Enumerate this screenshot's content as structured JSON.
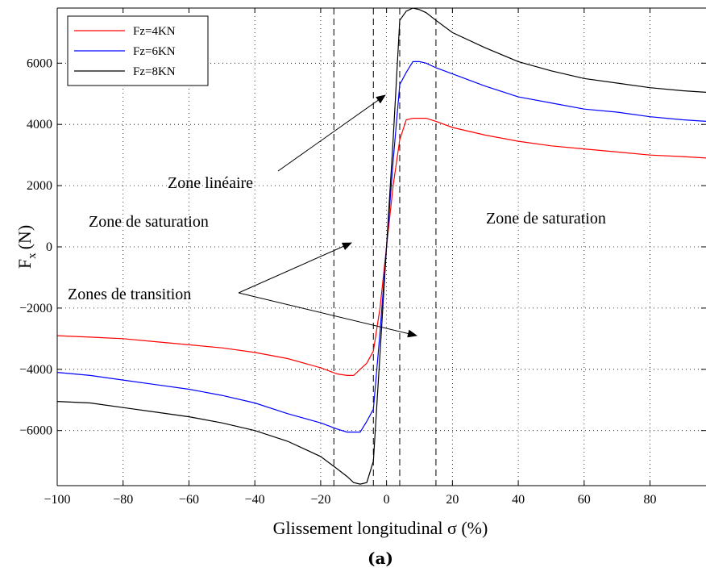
{
  "chart_data": {
    "type": "line",
    "xlabel": "Glissement longitudinal σ (%)",
    "ylabel": "F",
    "ylabel_sub": "x",
    "ylabel_unit": "(N)",
    "caption": "(a)",
    "xlim": [
      -100,
      97
    ],
    "ylim": [
      -7800,
      7800
    ],
    "xticks": [
      -100,
      -80,
      -60,
      -40,
      -20,
      0,
      20,
      40,
      60,
      80
    ],
    "yticks": [
      -6000,
      -4000,
      -2000,
      0,
      2000,
      4000,
      6000
    ],
    "xtick_labels": [
      "−100",
      "−80",
      "−60",
      "−40",
      "−20",
      "0",
      "20",
      "40",
      "60",
      "80"
    ],
    "ytick_labels": [
      "−6000",
      "−4000",
      "−2000",
      "0",
      "2000",
      "4000",
      "6000"
    ],
    "grid": true,
    "legend_position": "top-left",
    "series": [
      {
        "name": "Fz=4KN",
        "color": "#ff0000",
        "x": [
          -100,
          -90,
          -80,
          -70,
          -60,
          -50,
          -40,
          -30,
          -20,
          -15,
          -12,
          -10,
          -8,
          -6,
          -4,
          -2,
          0,
          2,
          4,
          6,
          8,
          10,
          12,
          15,
          20,
          30,
          40,
          50,
          60,
          70,
          80,
          90,
          97
        ],
        "y": [
          -2900,
          -2950,
          -3000,
          -3100,
          -3200,
          -3300,
          -3450,
          -3650,
          -3950,
          -4150,
          -4200,
          -4200,
          -4000,
          -3800,
          -3400,
          -2000,
          0,
          2000,
          3500,
          4150,
          4200,
          4200,
          4200,
          4100,
          3900,
          3650,
          3450,
          3300,
          3200,
          3100,
          3000,
          2950,
          2900
        ]
      },
      {
        "name": "Fz=6KN",
        "color": "#0000ff",
        "x": [
          -100,
          -90,
          -80,
          -70,
          -60,
          -50,
          -40,
          -30,
          -20,
          -15,
          -12,
          -10,
          -8,
          -6,
          -4,
          -2,
          0,
          2,
          4,
          6,
          8,
          10,
          12,
          15,
          20,
          30,
          40,
          50,
          60,
          70,
          80,
          90,
          97
        ],
        "y": [
          -4100,
          -4200,
          -4350,
          -4500,
          -4650,
          -4850,
          -5100,
          -5450,
          -5750,
          -5950,
          -6050,
          -6050,
          -6050,
          -5700,
          -5300,
          -2800,
          0,
          2800,
          5300,
          5700,
          6050,
          6050,
          6000,
          5850,
          5650,
          5250,
          4900,
          4700,
          4500,
          4400,
          4250,
          4150,
          4100
        ]
      },
      {
        "name": "Fz=8KN",
        "color": "#000000",
        "x": [
          -100,
          -90,
          -80,
          -70,
          -60,
          -50,
          -40,
          -30,
          -20,
          -15,
          -12,
          -10,
          -8,
          -6,
          -4,
          -2,
          0,
          2,
          4,
          6,
          8,
          10,
          12,
          15,
          20,
          30,
          40,
          50,
          60,
          70,
          80,
          90,
          97
        ],
        "y": [
          -5050,
          -5100,
          -5250,
          -5400,
          -5550,
          -5750,
          -6000,
          -6350,
          -6850,
          -7250,
          -7500,
          -7700,
          -7750,
          -7700,
          -7000,
          -3500,
          0,
          3500,
          7400,
          7700,
          7800,
          7750,
          7650,
          7400,
          7000,
          6500,
          6050,
          5750,
          5500,
          5350,
          5200,
          5100,
          5050
        ]
      }
    ],
    "vertical_dashed_lines_x": [
      -16,
      -4,
      4,
      15
    ],
    "annotations": [
      {
        "text": "Zone linéaire"
      },
      {
        "text": "Zone de saturation",
        "side": "left"
      },
      {
        "text": "Zone de saturation",
        "side": "right"
      },
      {
        "text": "Zones de transition"
      }
    ]
  }
}
